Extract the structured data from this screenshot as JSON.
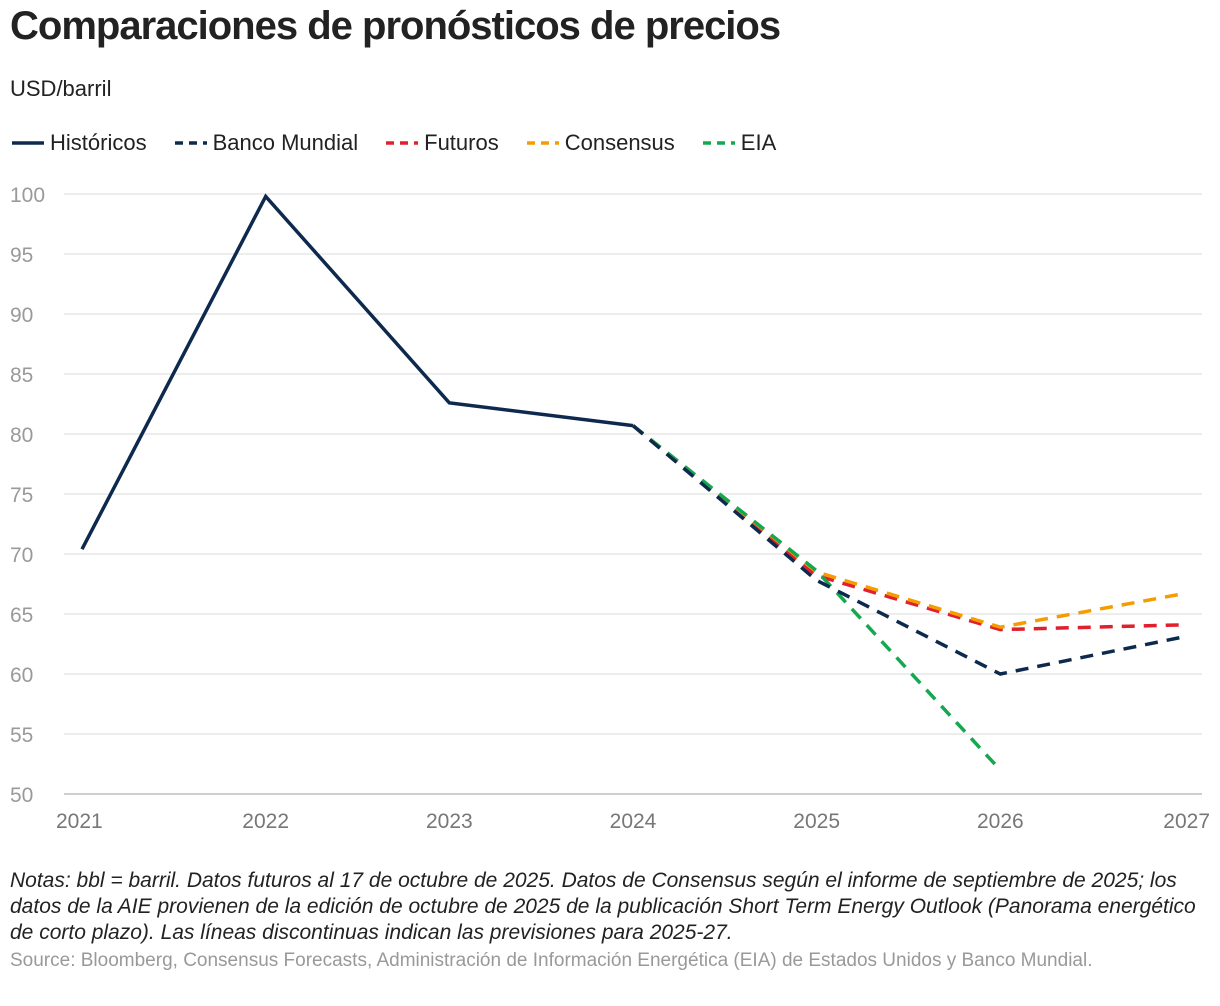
{
  "title": "Comparaciones de pronósticos de precios",
  "subtitle": "USD/barril",
  "legend": [
    {
      "label": "Históricos",
      "color": "#0d2a4e",
      "dashed": false
    },
    {
      "label": "Banco Mundial",
      "color": "#0d2a4e",
      "dashed": true
    },
    {
      "label": "Futuros",
      "color": "#e0202c",
      "dashed": true
    },
    {
      "label": "Consensus",
      "color": "#f59c00",
      "dashed": true
    },
    {
      "label": "EIA",
      "color": "#15a850",
      "dashed": true
    }
  ],
  "chart_data": {
    "type": "line",
    "x": [
      2021,
      2022,
      2023,
      2024,
      2025,
      2026,
      2027
    ],
    "xlabels": [
      "2021",
      "2022",
      "2023",
      "2024",
      "2025",
      "2026",
      "2027"
    ],
    "ylim": [
      50,
      100
    ],
    "yticks": [
      100,
      95,
      90,
      85,
      80,
      75,
      70,
      65,
      60,
      55,
      50
    ],
    "grid": true,
    "series": [
      {
        "name": "Históricos",
        "color": "#0d2a4e",
        "dashed": false,
        "points": [
          [
            2021,
            70.4
          ],
          [
            2022,
            99.8
          ],
          [
            2023,
            82.6
          ],
          [
            2024,
            80.7
          ]
        ]
      },
      {
        "name": "Futuros",
        "color": "#e0202c",
        "dashed": true,
        "points": [
          [
            2024,
            80.7
          ],
          [
            2025,
            68.2
          ],
          [
            2026,
            63.7
          ],
          [
            2027,
            64.1
          ]
        ]
      },
      {
        "name": "Consensus",
        "color": "#f59c00",
        "dashed": true,
        "points": [
          [
            2024,
            80.7
          ],
          [
            2025,
            68.5
          ],
          [
            2026,
            63.9
          ],
          [
            2027,
            66.7
          ]
        ]
      },
      {
        "name": "EIA",
        "color": "#15a850",
        "dashed": true,
        "points": [
          [
            2024,
            80.7
          ],
          [
            2025,
            68.6
          ],
          [
            2026,
            52.0
          ]
        ]
      },
      {
        "name": "Banco Mundial",
        "color": "#0d2a4e",
        "dashed": true,
        "points": [
          [
            2024,
            80.7
          ],
          [
            2025,
            67.8
          ],
          [
            2026,
            60.0
          ],
          [
            2027,
            63.1
          ]
        ]
      }
    ]
  },
  "notes": "Notas: bbl = barril. Datos futuros al 17 de octubre de 2025. Datos de Consensus según el informe de septiembre de 2025; los datos de la AIE provienen de la edición de octubre de 2025 de la publicación Short Term Energy Outlook (Panorama energético de corto plazo). Las líneas discontinuas indican las previsiones para 2025-27.",
  "source": "Source: Bloomberg, Consensus Forecasts, Administración de Información Energética (EIA) de Estados Unidos y Banco Mundial."
}
